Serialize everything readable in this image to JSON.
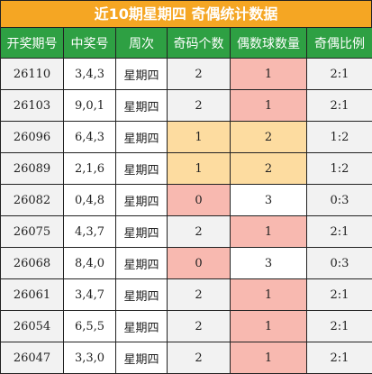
{
  "header": {
    "title": "近10期星期四 奇偶统计数据"
  },
  "table": {
    "columns": [
      "开奖期号",
      "中奖号",
      "周次",
      "奇码个数",
      "偶数球数量",
      "奇偶比例"
    ],
    "rows": [
      [
        "26110",
        "3,4,3",
        "星期四",
        "2",
        "1",
        "2:1"
      ],
      [
        "26103",
        "9,0,1",
        "星期四",
        "2",
        "1",
        "2:1"
      ],
      [
        "26096",
        "6,4,3",
        "星期四",
        "1",
        "2",
        "1:2"
      ],
      [
        "26089",
        "2,1,6",
        "星期四",
        "1",
        "2",
        "1:2"
      ],
      [
        "26082",
        "0,4,8",
        "星期四",
        "0",
        "3",
        "0:3"
      ],
      [
        "26075",
        "4,3,7",
        "星期四",
        "2",
        "1",
        "2:1"
      ],
      [
        "26068",
        "8,4,0",
        "星期四",
        "0",
        "3",
        "0:3"
      ],
      [
        "26061",
        "3,4,7",
        "星期四",
        "2",
        "1",
        "2:1"
      ],
      [
        "26054",
        "6,5,5",
        "星期四",
        "2",
        "1",
        "2:1"
      ],
      [
        "26047",
        "3,3,0",
        "星期四",
        "2",
        "1",
        "2:1"
      ]
    ]
  }
}
